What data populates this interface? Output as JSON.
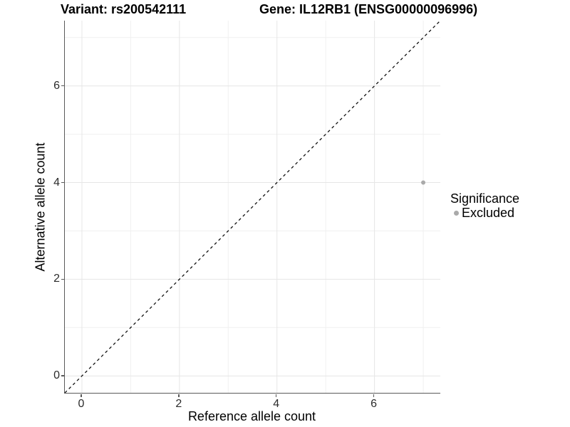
{
  "chart_data": {
    "type": "scatter",
    "title_variant": "Variant: rs200542111",
    "title_gene": "Gene: IL12RB1 (ENSG00000096996)",
    "xlabel": "Reference allele count",
    "ylabel": "Alternative allele count",
    "xlim": [
      -0.35,
      7.35
    ],
    "ylim": [
      -0.35,
      7.35
    ],
    "x_ticks": [
      0,
      2,
      4,
      6
    ],
    "y_ticks": [
      0,
      2,
      4,
      6
    ],
    "major_grid": [
      0,
      2,
      4,
      6
    ],
    "minor_grid": [
      1,
      3,
      5,
      7
    ],
    "grid": {
      "major_color": "#e6e6e6",
      "minor_color": "#f0f0f0",
      "background": "#ffffff"
    },
    "axis_color": "#5a5a5a",
    "reference_line": {
      "kind": "identity y=x",
      "style": "dashed",
      "color": "#111111",
      "dash": "4 4",
      "width": 1.3
    },
    "series": [
      {
        "name": "Excluded",
        "color": "#aaaaaa",
        "point_radius": 3,
        "points": [
          [
            7,
            4
          ]
        ]
      }
    ],
    "legend": {
      "title": "Significance",
      "position": "right",
      "entries": [
        {
          "label": "Excluded",
          "color": "#aaaaaa"
        }
      ]
    }
  }
}
